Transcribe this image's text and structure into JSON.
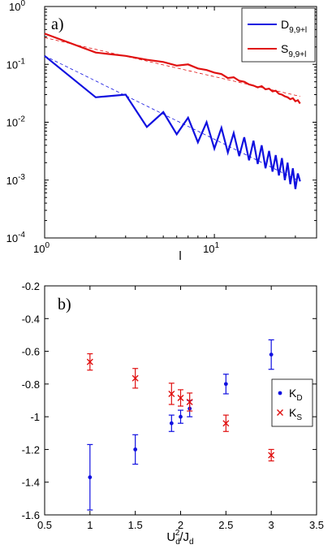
{
  "chart_data": [
    {
      "type": "line",
      "panel_label": "a)",
      "xlabel": "l",
      "ylabel": "",
      "xscale": "log",
      "yscale": "log",
      "xlim": [
        1,
        40
      ],
      "ylim": [
        0.0001,
        1
      ],
      "x_ticks": [
        1,
        10
      ],
      "x_tick_labels": [
        "10^0",
        "10^1"
      ],
      "y_ticks": [
        0.0001,
        0.001,
        0.01,
        0.1,
        1
      ],
      "y_tick_labels": [
        "10^-4",
        "10^-3",
        "10^-2",
        "10^-1",
        "10^0"
      ],
      "legend_position": "top-right",
      "series": [
        {
          "name": "D",
          "name_subscript": "9,9+l",
          "color": "#1010e0",
          "style": "solid",
          "x": [
            1,
            2,
            3,
            4,
            5,
            6,
            7,
            8,
            9,
            10,
            11,
            12,
            13,
            14,
            15,
            16,
            17,
            18,
            19,
            20,
            21,
            22,
            23,
            24,
            25,
            26,
            27,
            28,
            29,
            30,
            31,
            32
          ],
          "values": [
            0.14,
            0.027,
            0.03,
            0.0083,
            0.015,
            0.0062,
            0.012,
            0.0045,
            0.01,
            0.0035,
            0.008,
            0.003,
            0.0065,
            0.0026,
            0.0055,
            0.0022,
            0.0048,
            0.0019,
            0.004,
            0.0016,
            0.0032,
            0.0014,
            0.0027,
            0.0012,
            0.0024,
            0.001,
            0.002,
            0.00085,
            0.0016,
            0.0007,
            0.0013,
            0.00095
          ]
        },
        {
          "name": "S",
          "name_subscript": "9,9+l",
          "color": "#e01010",
          "style": "solid",
          "x": [
            1,
            2,
            3,
            4,
            5,
            6,
            7,
            8,
            9,
            10,
            11,
            12,
            13,
            14,
            15,
            16,
            17,
            18,
            19,
            20,
            21,
            22,
            23,
            24,
            25,
            26,
            27,
            28,
            29,
            30,
            31,
            32
          ],
          "values": [
            0.34,
            0.16,
            0.14,
            0.12,
            0.11,
            0.095,
            0.1,
            0.085,
            0.08,
            0.072,
            0.068,
            0.058,
            0.06,
            0.052,
            0.05,
            0.045,
            0.043,
            0.04,
            0.042,
            0.037,
            0.038,
            0.034,
            0.035,
            0.031,
            0.03,
            0.028,
            0.027,
            0.025,
            0.026,
            0.023,
            0.024,
            0.021
          ]
        },
        {
          "name": "",
          "color": "#1010e0",
          "style": "dashed",
          "x": [
            1,
            32
          ],
          "values": [
            0.14,
            0.00095
          ]
        },
        {
          "name": "",
          "color": "#e01010",
          "style": "dashed",
          "x": [
            1,
            32
          ],
          "values": [
            0.29,
            0.028
          ]
        }
      ]
    },
    {
      "type": "scatter",
      "panel_label": "b)",
      "xlabel_main": "U",
      "xlabel_sub1": "d",
      "xlabel_sup": "2",
      "xlabel_slash": "/J",
      "xlabel_sub2": "d",
      "ylabel": "",
      "xlim": [
        0.5,
        3.5
      ],
      "ylim": [
        -1.6,
        -0.2
      ],
      "x_ticks": [
        0.5,
        1,
        1.5,
        2,
        2.5,
        3,
        3.5
      ],
      "x_tick_labels": [
        "0.5",
        "1",
        "1.5",
        "2",
        "2.5",
        "3",
        "3.5"
      ],
      "y_ticks": [
        -1.6,
        -1.4,
        -1.2,
        -1,
        -0.8,
        -0.6,
        -0.4,
        -0.2
      ],
      "y_tick_labels": [
        "-1.6",
        "-1.4",
        "-1.2",
        "-1",
        "-0.8",
        "-0.6",
        "-0.4",
        "-0.2"
      ],
      "legend_position": "right",
      "series": [
        {
          "name": "K",
          "name_subscript": "D",
          "marker": "dot",
          "color": "#1010e0",
          "x": [
            1,
            1.5,
            1.9,
            2,
            2.1,
            2.5,
            3
          ],
          "values": [
            -1.37,
            -1.2,
            -1.04,
            -1.0,
            -0.95,
            -0.8,
            -0.62
          ],
          "error": [
            0.2,
            0.09,
            0.05,
            0.04,
            0.05,
            0.06,
            0.09
          ]
        },
        {
          "name": "K",
          "name_subscript": "S",
          "marker": "x",
          "color": "#e01010",
          "x": [
            1,
            1.5,
            1.9,
            2,
            2.1,
            2.5,
            3
          ],
          "values": [
            -0.665,
            -0.765,
            -0.86,
            -0.885,
            -0.91,
            -1.04,
            -1.235
          ],
          "error": [
            0.05,
            0.06,
            0.065,
            0.05,
            0.055,
            0.05,
            0.035
          ]
        }
      ]
    }
  ]
}
